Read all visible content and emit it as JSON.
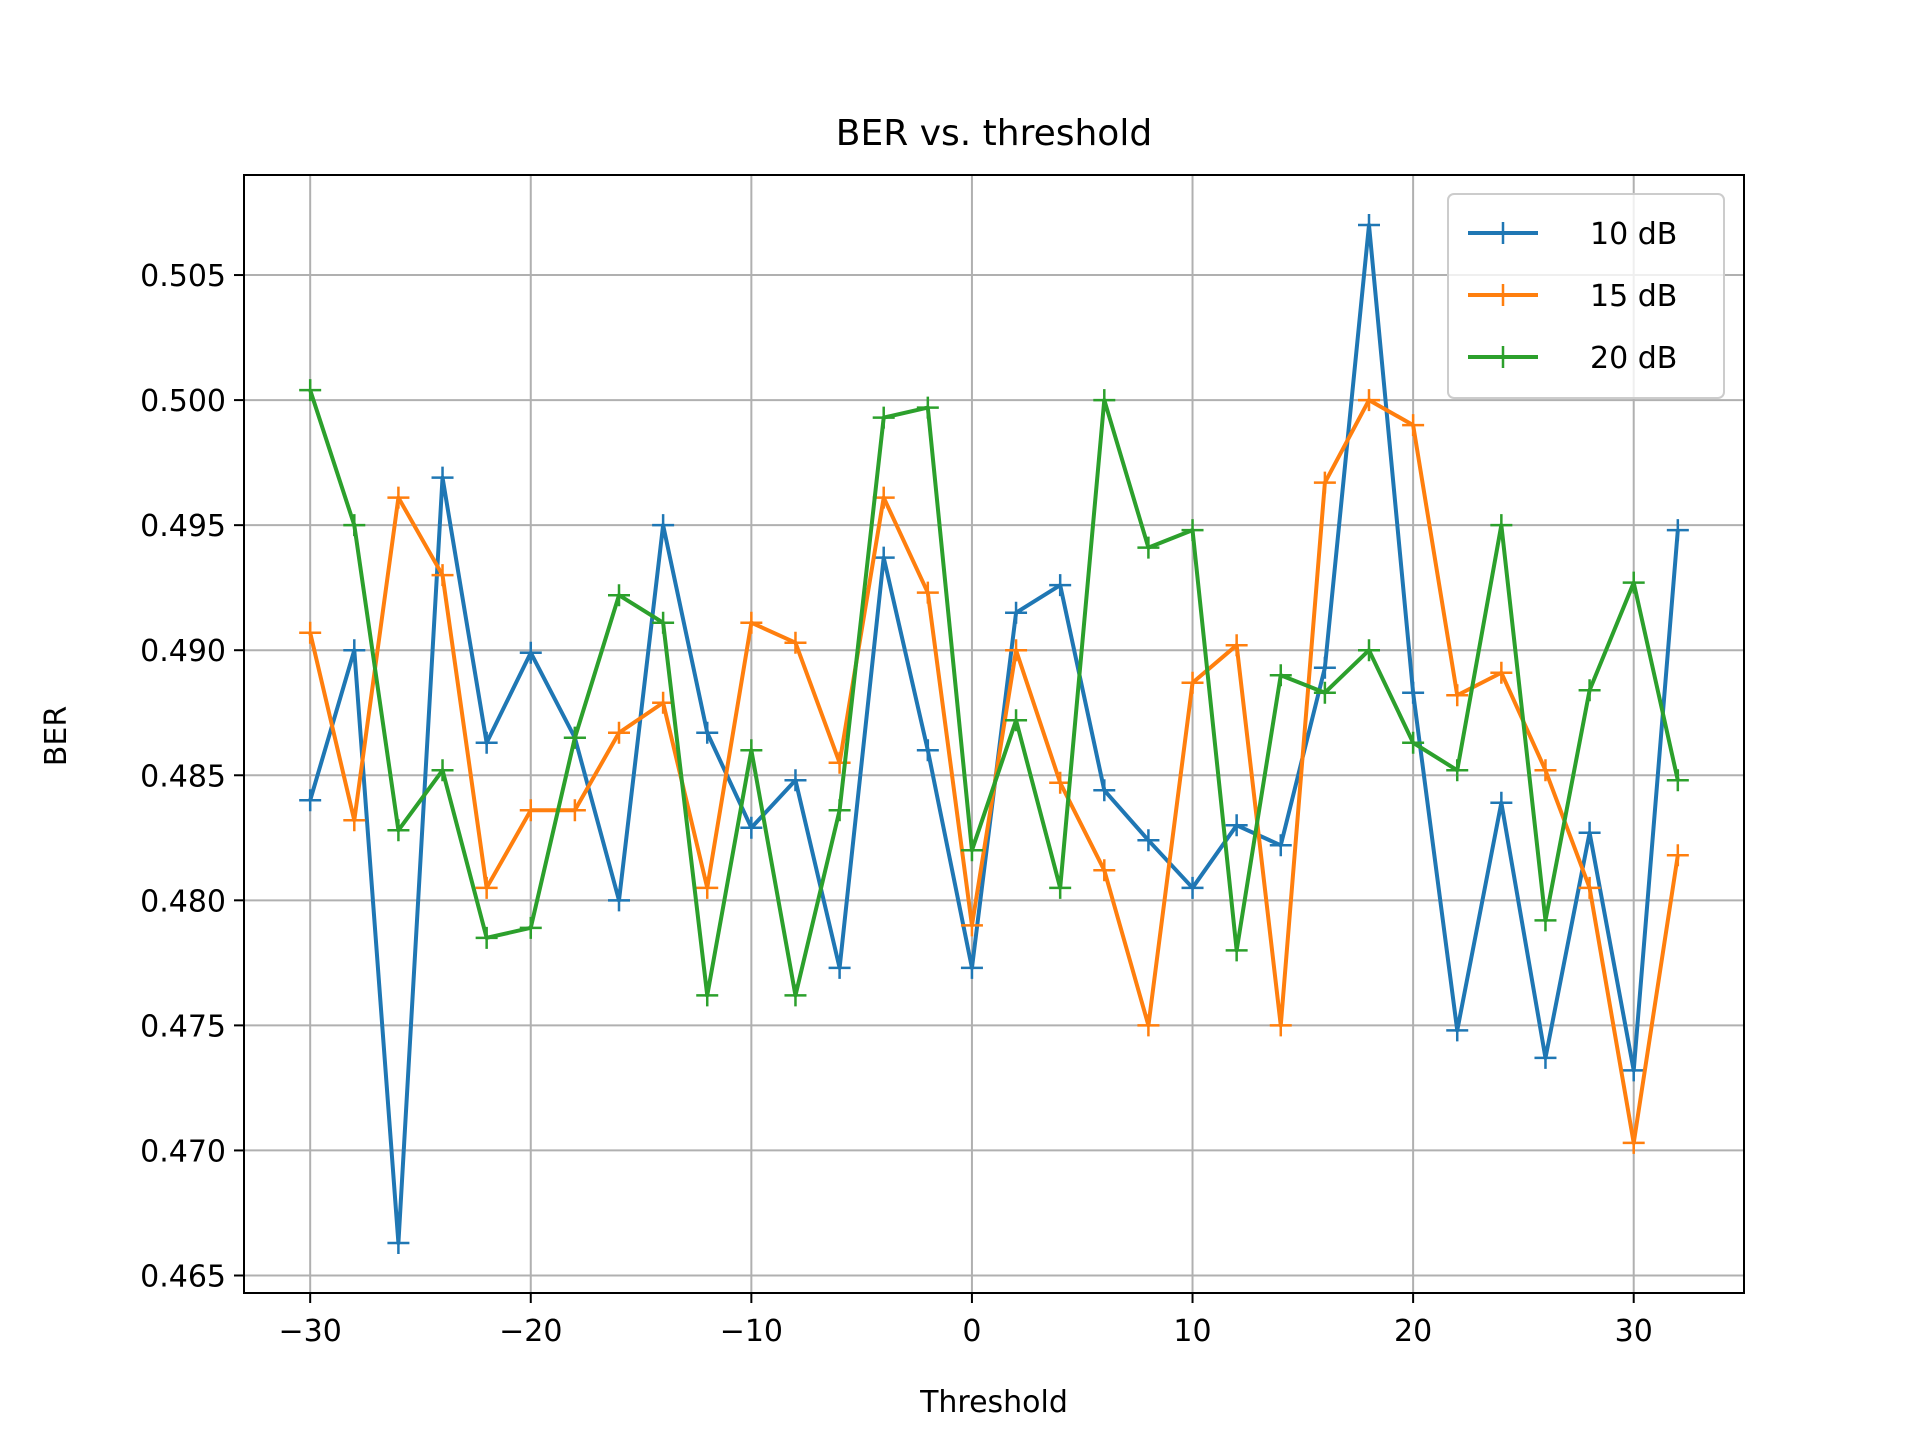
{
  "chart_data": {
    "type": "line",
    "title": "BER vs. threshold",
    "xlabel": "Threshold",
    "ylabel": "BER",
    "xlim": [
      -33,
      35
    ],
    "ylim": [
      0.4643,
      0.509
    ],
    "xticks": [
      -30,
      -20,
      -10,
      0,
      10,
      20,
      30
    ],
    "xtick_labels": [
      "−30",
      "−20",
      "−10",
      "0",
      "10",
      "20",
      "30"
    ],
    "yticks": [
      0.465,
      0.47,
      0.475,
      0.48,
      0.485,
      0.49,
      0.495,
      0.5,
      0.505
    ],
    "ytick_labels": [
      "0.465",
      "0.470",
      "0.475",
      "0.480",
      "0.485",
      "0.490",
      "0.495",
      "0.500",
      "0.505"
    ],
    "grid": true,
    "legend_position": "top-right",
    "x": [
      -30,
      -28,
      -26,
      -24,
      -22,
      -20,
      -18,
      -16,
      -14,
      -12,
      -10,
      -8,
      -6,
      -4,
      -2,
      0,
      2,
      4,
      6,
      8,
      10,
      12,
      14,
      16,
      18,
      20,
      22,
      24,
      26,
      28,
      30,
      32
    ],
    "series": [
      {
        "name": "10 dB",
        "color": "#1f77b4",
        "marker": "plus",
        "values": [
          0.484,
          0.49,
          0.4663,
          0.4969,
          0.4863,
          0.4899,
          0.4865,
          0.48,
          0.495,
          0.4867,
          0.4829,
          0.4848,
          0.4773,
          0.4937,
          0.486,
          0.4773,
          0.4915,
          0.4926,
          0.4844,
          0.4824,
          0.4805,
          0.483,
          0.4822,
          0.4893,
          0.507,
          0.4883,
          0.4748,
          0.4839,
          0.4737,
          0.4827,
          0.4732,
          0.4948
        ]
      },
      {
        "name": "15 dB",
        "color": "#ff7f0e",
        "marker": "plus",
        "values": [
          0.4907,
          0.4832,
          0.4961,
          0.493,
          0.4805,
          0.4836,
          0.4836,
          0.4867,
          0.4879,
          0.4805,
          0.4911,
          0.4903,
          0.4855,
          0.4961,
          0.4923,
          0.479,
          0.49,
          0.4847,
          0.4812,
          0.475,
          0.4887,
          0.4902,
          0.475,
          0.4967,
          0.5,
          0.499,
          0.4882,
          0.4891,
          0.4852,
          0.4805,
          0.4703,
          0.4818
        ]
      },
      {
        "name": "20 dB",
        "color": "#2ca02c",
        "marker": "plus",
        "values": [
          0.5004,
          0.495,
          0.4828,
          0.4852,
          0.4785,
          0.4789,
          0.4865,
          0.4922,
          0.4911,
          0.4762,
          0.486,
          0.4762,
          0.4836,
          0.4993,
          0.4997,
          0.482,
          0.4872,
          0.4805,
          0.5,
          0.4941,
          0.4948,
          0.478,
          0.489,
          0.4883,
          0.49,
          0.4863,
          0.4852,
          0.495,
          0.4792,
          0.4884,
          0.4927,
          0.4848
        ]
      }
    ]
  }
}
